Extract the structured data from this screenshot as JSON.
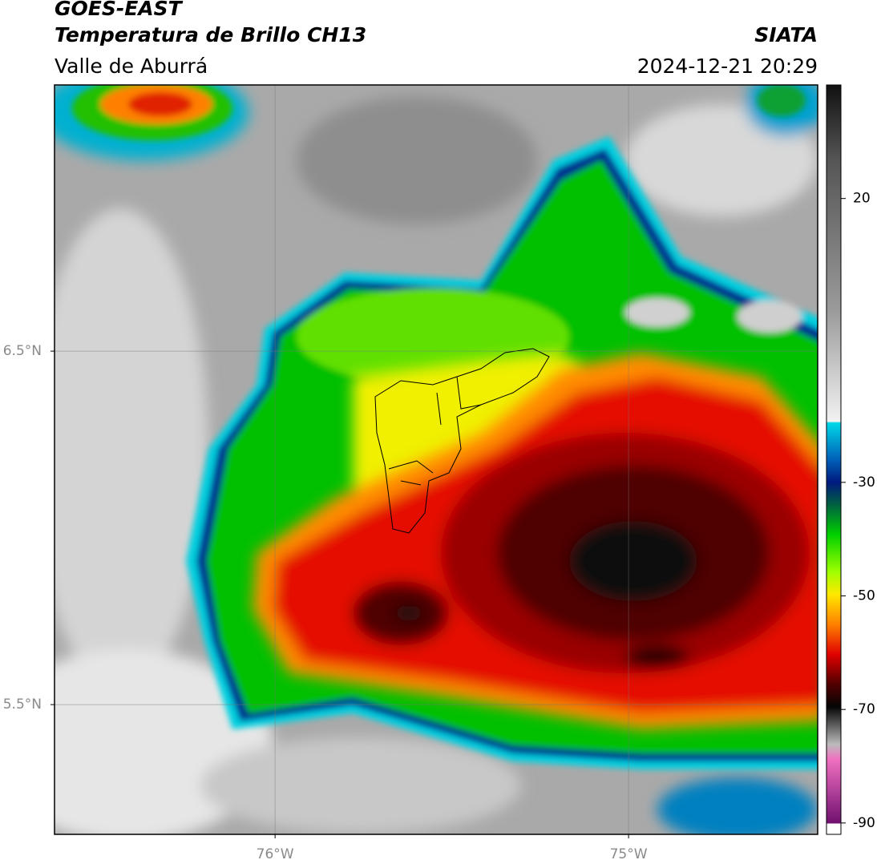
{
  "header": {
    "title": "GOES-EAST",
    "subtitle": "Temperatura de Brillo CH13",
    "source": "SIATA",
    "region": "Valle de Aburrá",
    "datetime": "2024-12-21 20:29"
  },
  "map": {
    "lon_range": [
      -76.624,
      -74.465
    ],
    "lat_range": [
      5.133,
      7.253
    ],
    "lon_ticks": [
      {
        "value": -76,
        "label": "76°W"
      },
      {
        "value": -75,
        "label": "75°W"
      }
    ],
    "lat_ticks": [
      {
        "value": 6.5,
        "label": "6.5°N"
      },
      {
        "value": 5.5,
        "label": "5.5°N"
      }
    ]
  },
  "colorbar": {
    "range": [
      -92,
      40
    ],
    "ticks": [
      20,
      -30,
      -50,
      -70,
      -90
    ]
  }
}
